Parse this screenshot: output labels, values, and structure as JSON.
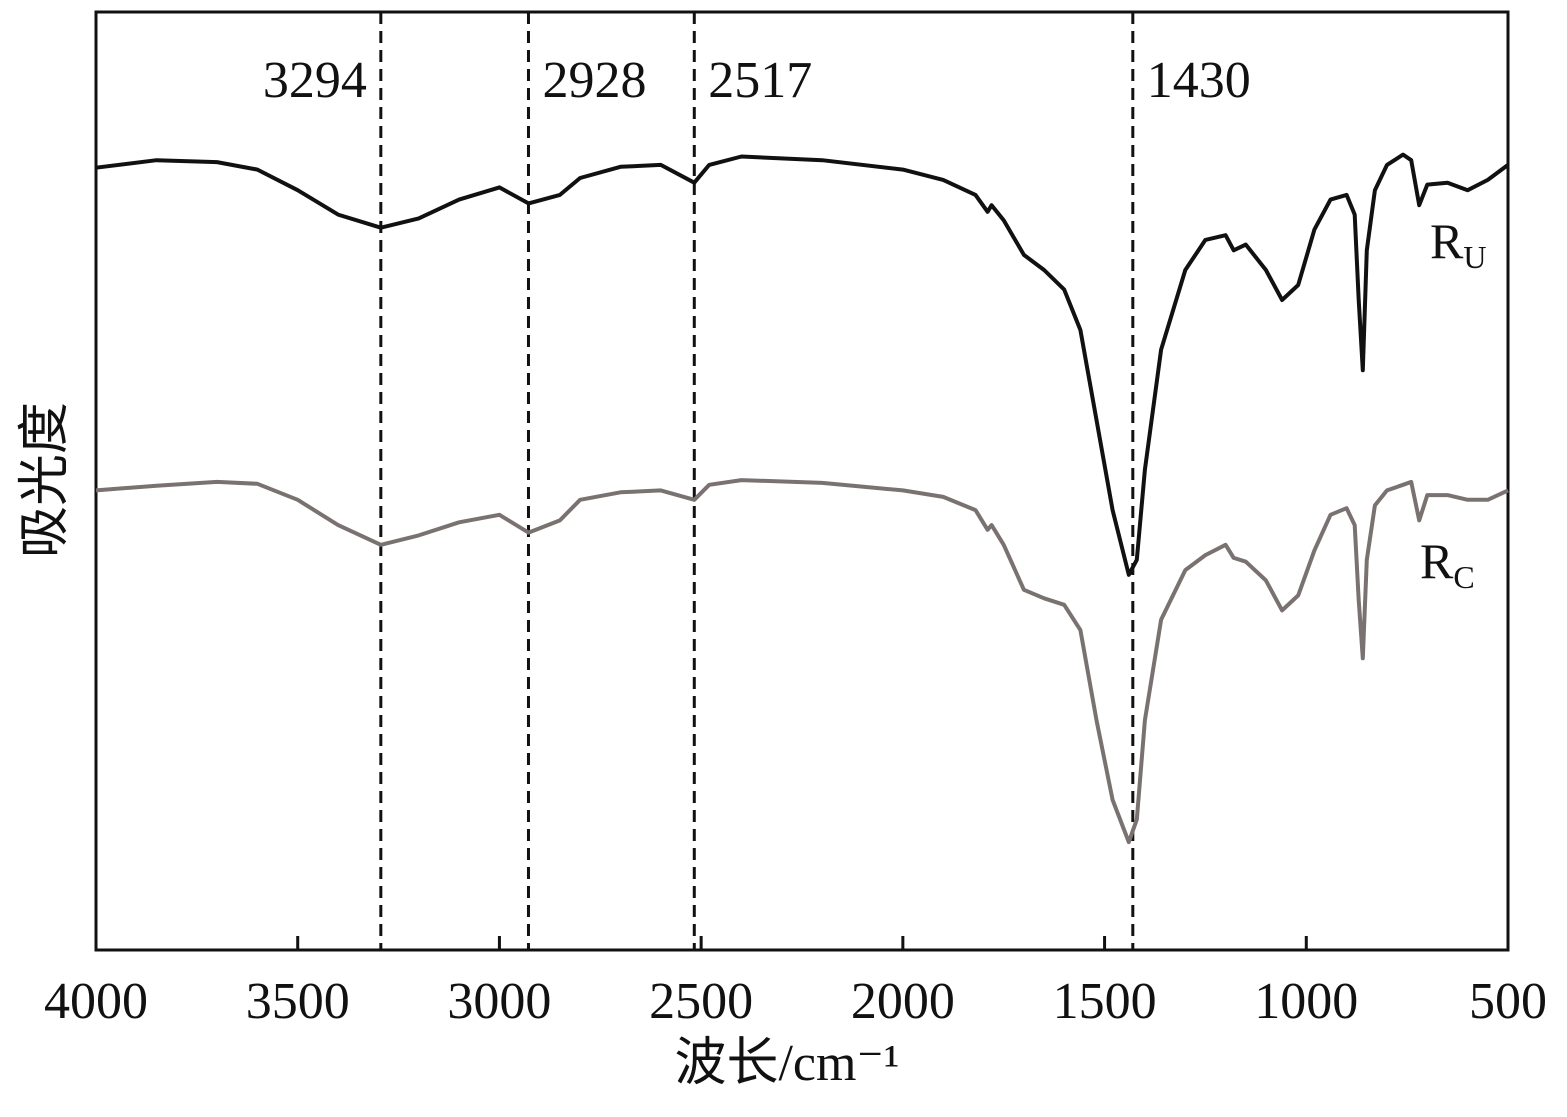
{
  "chart_data": {
    "type": "line",
    "xlabel": "波长/cm⁻¹",
    "ylabel": "吸光度",
    "xlim": [
      4000,
      500
    ],
    "ylim": [
      0,
      100
    ],
    "xticks": [
      4000,
      3500,
      3000,
      2500,
      2000,
      1500,
      1000,
      500
    ],
    "vlines": [
      3294,
      2928,
      2517,
      1430
    ],
    "series": [
      {
        "name": "R",
        "subscript": "U",
        "color": "#111111",
        "x": [
          4000,
          3850,
          3700,
          3600,
          3500,
          3400,
          3294,
          3200,
          3100,
          3000,
          2928,
          2850,
          2800,
          2700,
          2600,
          2517,
          2480,
          2400,
          2200,
          2000,
          1900,
          1820,
          1790,
          1780,
          1750,
          1700,
          1650,
          1600,
          1560,
          1520,
          1480,
          1440,
          1420,
          1400,
          1360,
          1300,
          1250,
          1200,
          1180,
          1150,
          1100,
          1060,
          1020,
          980,
          940,
          900,
          880,
          870,
          860,
          850,
          830,
          800,
          760,
          740,
          720,
          700,
          650,
          600,
          550,
          500
        ],
        "values": [
          83.4,
          84.2,
          84.0,
          83.2,
          81.0,
          78.4,
          77.0,
          78.0,
          80.0,
          81.3,
          79.6,
          80.5,
          82.3,
          83.5,
          83.7,
          81.8,
          83.7,
          84.6,
          84.2,
          83.2,
          82.1,
          80.5,
          78.7,
          79.4,
          77.8,
          74.1,
          72.5,
          70.4,
          66.1,
          56.5,
          46.9,
          40.0,
          41.6,
          51.2,
          64.0,
          72.5,
          75.7,
          76.2,
          74.6,
          75.2,
          72.5,
          69.3,
          70.9,
          76.8,
          80.0,
          80.5,
          78.4,
          69.3,
          61.8,
          74.6,
          81.0,
          83.7,
          84.8,
          84.2,
          79.4,
          81.6,
          81.8,
          81.0,
          82.1,
          83.7
        ]
      },
      {
        "name": "R",
        "subscript": "C",
        "color": "#7a7270",
        "x": [
          4000,
          3850,
          3700,
          3600,
          3500,
          3400,
          3294,
          3200,
          3100,
          3000,
          2928,
          2850,
          2800,
          2700,
          2600,
          2517,
          2480,
          2400,
          2200,
          2000,
          1900,
          1820,
          1790,
          1780,
          1750,
          1700,
          1650,
          1600,
          1560,
          1520,
          1480,
          1440,
          1420,
          1400,
          1360,
          1300,
          1250,
          1200,
          1180,
          1150,
          1100,
          1060,
          1020,
          980,
          940,
          900,
          880,
          870,
          860,
          850,
          830,
          800,
          760,
          740,
          720,
          700,
          650,
          600,
          550,
          500
        ],
        "values": [
          49.0,
          49.5,
          49.9,
          49.7,
          48.0,
          45.3,
          43.2,
          44.2,
          45.6,
          46.4,
          44.5,
          45.8,
          48.0,
          48.8,
          49.0,
          48.0,
          49.6,
          50.1,
          49.8,
          49.0,
          48.3,
          46.9,
          44.8,
          45.3,
          43.2,
          38.4,
          37.5,
          36.8,
          34.1,
          24.5,
          16.0,
          11.5,
          13.9,
          24.5,
          35.2,
          40.5,
          42.1,
          43.2,
          41.8,
          41.4,
          39.4,
          36.2,
          37.8,
          42.6,
          46.4,
          47.1,
          45.3,
          37.3,
          31.1,
          41.6,
          47.4,
          49.0,
          49.6,
          49.9,
          45.8,
          48.5,
          48.5,
          48.0,
          48.0,
          49.0
        ]
      }
    ]
  }
}
